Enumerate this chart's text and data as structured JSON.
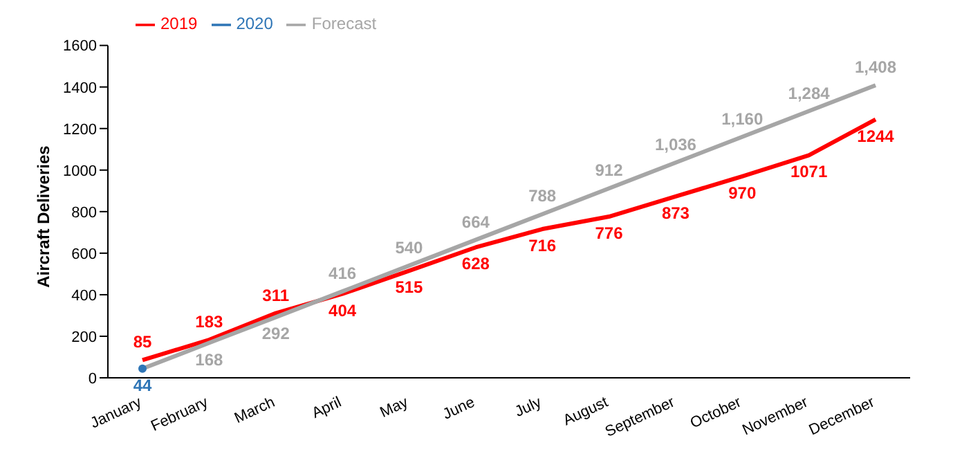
{
  "chart_data": {
    "type": "line",
    "ylabel": "Aircraft Deliveries",
    "categories": [
      "January",
      "February",
      "March",
      "April",
      "May",
      "June",
      "July",
      "August",
      "September",
      "October",
      "November",
      "December"
    ],
    "series": [
      {
        "name": "2019",
        "color": "#ff0000",
        "values": [
          85,
          183,
          311,
          404,
          515,
          628,
          716,
          776,
          873,
          970,
          1071,
          1244
        ],
        "value_labels": [
          "85",
          "183",
          "311",
          "404",
          "515",
          "628",
          "716",
          "776",
          "873",
          "970",
          "1071",
          "1244"
        ]
      },
      {
        "name": "2020",
        "color": "#2e75b6",
        "marker": "circle",
        "values": [
          44,
          null,
          null,
          null,
          null,
          null,
          null,
          null,
          null,
          null,
          null,
          null
        ],
        "value_labels": [
          "44",
          null,
          null,
          null,
          null,
          null,
          null,
          null,
          null,
          null,
          null,
          null
        ]
      },
      {
        "name": "Forecast",
        "color": "#a6a6a6",
        "values": [
          44,
          168,
          292,
          416,
          540,
          664,
          788,
          912,
          1036,
          1160,
          1284,
          1408
        ],
        "value_labels": [
          null,
          "168",
          "292",
          "416",
          "540",
          "664",
          "788",
          "912",
          "1,036",
          "1,160",
          "1,284",
          "1,408"
        ]
      }
    ],
    "ylim": [
      0,
      1600
    ],
    "yticks": [
      0,
      200,
      400,
      600,
      800,
      1000,
      1200,
      1400,
      1600
    ],
    "legend": "top left",
    "marker": "none",
    "line_style": "solid"
  }
}
